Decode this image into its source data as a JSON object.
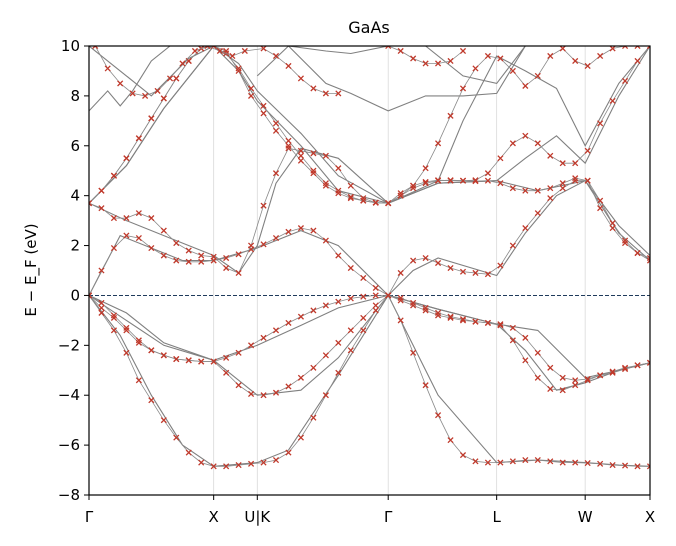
{
  "chart_data": {
    "type": "line",
    "title": "GaAs",
    "ylabel": "E − E_F  (eV)",
    "ylim": [
      -8,
      10
    ],
    "y_ticks": [
      -8,
      -6,
      -4,
      -2,
      0,
      2,
      4,
      6,
      8,
      10
    ],
    "xlim": [
      0,
      4.5
    ],
    "k_points": [
      {
        "label": "Γ",
        "x": 0
      },
      {
        "label": "X",
        "x": 1.0
      },
      {
        "label": "U|K",
        "x": 1.35
      },
      {
        "label": "Γ",
        "x": 2.4
      },
      {
        "label": "L",
        "x": 3.27
      },
      {
        "label": "W",
        "x": 3.98
      },
      {
        "label": "X",
        "x": 4.5
      }
    ],
    "fermi_level": 0,
    "grid": "vertical lines at high-symmetry points",
    "colors": {
      "reference_bands": "#808080",
      "markers": "#c0392b",
      "fermi_line": "#1f3b5c"
    },
    "series": [
      {
        "role": "reference",
        "x": [
          0,
          0.25,
          0.5,
          0.75,
          1.0,
          1.35,
          1.6,
          2.0,
          2.4,
          2.8,
          3.27,
          3.6,
          3.98,
          4.25,
          4.5
        ],
        "y": [
          0,
          -1.6,
          -4.0,
          -6.0,
          -6.85,
          -6.7,
          -6.2,
          -3.2,
          0,
          -4.0,
          -6.7,
          -6.6,
          -6.7,
          -6.8,
          -6.85
        ]
      },
      {
        "role": "reference",
        "x": [
          0,
          0.3,
          0.6,
          1.0,
          1.35,
          1.7,
          2.0,
          2.4,
          2.8,
          3.27,
          3.5,
          3.75,
          3.98,
          4.25,
          4.5
        ],
        "y": [
          0,
          -1.0,
          -2.0,
          -2.6,
          -4.0,
          -3.8,
          -2.5,
          0,
          -0.55,
          -1.15,
          -2.2,
          -3.8,
          -3.5,
          -3.0,
          -2.7
        ]
      },
      {
        "role": "reference",
        "x": [
          0,
          0.3,
          0.6,
          1.0,
          1.35,
          1.7,
          2.0,
          2.4,
          2.8,
          3.27,
          3.6,
          3.98,
          4.25,
          4.5
        ],
        "y": [
          0,
          -0.7,
          -1.9,
          -2.6,
          -2.0,
          -1.2,
          -0.5,
          0,
          -0.55,
          -1.15,
          -1.4,
          -3.3,
          -3.0,
          -2.7
        ]
      },
      {
        "role": "reference",
        "x": [
          0,
          0.25,
          0.5,
          0.75,
          1.0,
          1.35,
          1.7,
          2.0,
          2.4,
          2.6,
          2.8,
          3.27,
          3.5,
          3.75,
          3.98,
          4.25,
          4.5
        ],
        "y": [
          0,
          2.4,
          1.9,
          1.4,
          1.4,
          1.9,
          2.6,
          2.0,
          0,
          1.0,
          1.5,
          0.8,
          2.5,
          4.0,
          4.6,
          2.5,
          1.4
        ]
      },
      {
        "role": "reference",
        "x": [
          0,
          0.3,
          0.7,
          1.0,
          1.2,
          1.35,
          1.5,
          1.7,
          2.0,
          2.4,
          2.8,
          3.27,
          3.6,
          3.98,
          4.25,
          4.5
        ],
        "y": [
          3.7,
          3.0,
          2.2,
          1.6,
          0.9,
          2.0,
          4.5,
          5.9,
          5.5,
          3.7,
          4.5,
          4.6,
          4.2,
          4.6,
          2.8,
          1.6
        ]
      },
      {
        "role": "reference",
        "x": [
          0,
          0.3,
          0.6,
          1.0,
          1.2,
          1.35,
          1.7,
          2.0,
          2.4,
          2.8,
          3.27,
          3.5,
          3.75,
          3.98,
          4.25,
          4.5
        ],
        "y": [
          3.7,
          5.2,
          7.5,
          10,
          9.0,
          7.8,
          6.0,
          4.2,
          3.7,
          4.5,
          4.6,
          5.5,
          6.4,
          5.3,
          8.0,
          10
        ]
      },
      {
        "role": "reference",
        "x": [
          0,
          0.3,
          0.6,
          1.0,
          1.2,
          1.35,
          1.7,
          2.0,
          2.4,
          2.8,
          3.0,
          3.27,
          3.5,
          3.75,
          3.98,
          4.25,
          4.5
        ],
        "y": [
          3.7,
          5.2,
          7.5,
          10,
          9.3,
          8.2,
          6.5,
          4.8,
          3.7,
          4.6,
          7.0,
          9.6,
          9.0,
          8.3,
          6.0,
          8.5,
          10
        ]
      },
      {
        "role": "reference",
        "x": [
          0,
          0.15,
          0.25,
          0.35,
          0.5,
          0.65,
          0.8,
          1.0
        ],
        "y": [
          7.4,
          8.2,
          7.6,
          8.2,
          9.4,
          10,
          10,
          10
        ]
      },
      {
        "role": "reference",
        "x": [
          0,
          0.3,
          0.5,
          0.8,
          1.0
        ],
        "y": [
          10,
          8.8,
          8.0,
          9.5,
          10
        ]
      },
      {
        "role": "reference",
        "x": [
          1.35,
          1.6,
          1.9,
          2.1,
          2.4,
          2.7,
          3.0,
          3.27,
          3.5
        ],
        "y": [
          8.8,
          10,
          8.5,
          8.1,
          7.4,
          8.0,
          8.0,
          8.1,
          10
        ]
      },
      {
        "role": "reference",
        "x": [
          1.6,
          1.9,
          2.1,
          2.4,
          2.7,
          3.0,
          3.27,
          3.5
        ],
        "y": [
          10,
          9.8,
          9.7,
          10,
          10,
          8.8,
          8.5,
          10
        ]
      },
      {
        "role": "markers",
        "x": [
          0,
          0.1,
          0.2,
          0.3,
          0.4,
          0.5,
          0.6,
          0.7,
          0.8,
          0.9,
          1.0,
          1.1,
          1.2,
          1.3,
          1.4,
          1.5,
          1.6,
          1.7,
          1.8,
          1.9,
          2.0,
          2.1,
          2.2,
          2.3,
          2.4,
          2.5,
          2.6,
          2.7,
          2.8,
          2.9,
          3.0,
          3.1,
          3.2,
          3.3,
          3.4,
          3.5,
          3.6,
          3.7,
          3.8,
          3.9,
          4.0,
          4.1,
          4.2,
          4.3,
          4.4,
          4.5
        ],
        "y": [
          0,
          -0.7,
          -1.4,
          -2.3,
          -3.4,
          -4.2,
          -5.0,
          -5.7,
          -6.3,
          -6.7,
          -6.85,
          -6.85,
          -6.8,
          -6.75,
          -6.7,
          -6.6,
          -6.3,
          -5.7,
          -4.9,
          -4.0,
          -3.1,
          -2.2,
          -1.4,
          -0.6,
          0,
          -1.0,
          -2.3,
          -3.6,
          -4.8,
          -5.8,
          -6.4,
          -6.65,
          -6.7,
          -6.7,
          -6.65,
          -6.6,
          -6.6,
          -6.65,
          -6.7,
          -6.7,
          -6.72,
          -6.75,
          -6.8,
          -6.82,
          -6.85,
          -6.85
        ]
      },
      {
        "role": "markers",
        "x": [
          0,
          0.1,
          0.2,
          0.3,
          0.4,
          0.5,
          0.6,
          0.7,
          0.8,
          0.9,
          1.0,
          1.1,
          1.2,
          1.3,
          1.4,
          1.5,
          1.6,
          1.7,
          1.8,
          1.9,
          2.0,
          2.1,
          2.2,
          2.3,
          2.4,
          2.5,
          2.6,
          2.7,
          2.8,
          2.9,
          3.0,
          3.1,
          3.2,
          3.3,
          3.4,
          3.5,
          3.6,
          3.7,
          3.8,
          3.9,
          4.0,
          4.1,
          4.2,
          4.3,
          4.4,
          4.5
        ],
        "y": [
          0,
          -0.5,
          -0.9,
          -1.4,
          -1.9,
          -2.2,
          -2.4,
          -2.55,
          -2.6,
          -2.65,
          -2.65,
          -3.1,
          -3.6,
          -3.95,
          -4.0,
          -3.9,
          -3.65,
          -3.3,
          -2.9,
          -2.4,
          -1.9,
          -1.4,
          -0.9,
          -0.4,
          0,
          -0.2,
          -0.4,
          -0.6,
          -0.8,
          -0.9,
          -1.0,
          -1.05,
          -1.1,
          -1.2,
          -1.8,
          -2.6,
          -3.3,
          -3.75,
          -3.8,
          -3.6,
          -3.4,
          -3.2,
          -3.1,
          -2.95,
          -2.8,
          -2.7
        ]
      },
      {
        "role": "markers",
        "x": [
          0,
          0.1,
          0.2,
          0.3,
          0.4,
          0.5,
          0.6,
          0.7,
          0.8,
          0.9,
          1.0,
          1.1,
          1.2,
          1.3,
          1.4,
          1.5,
          1.6,
          1.7,
          1.8,
          1.9,
          2.0,
          2.1,
          2.2,
          2.3,
          2.4,
          2.5,
          2.6,
          2.7,
          2.8,
          2.9,
          3.0,
          3.1,
          3.2,
          3.3,
          3.4,
          3.5,
          3.6,
          3.7,
          3.8,
          3.9,
          4.0,
          4.1,
          4.2,
          4.3,
          4.4,
          4.5
        ],
        "y": [
          0,
          -0.3,
          -0.8,
          -1.3,
          -1.8,
          -2.2,
          -2.4,
          -2.55,
          -2.6,
          -2.65,
          -2.65,
          -2.5,
          -2.3,
          -2.0,
          -1.7,
          -1.4,
          -1.1,
          -0.85,
          -0.6,
          -0.4,
          -0.25,
          -0.12,
          -0.05,
          0,
          0,
          -0.1,
          -0.3,
          -0.5,
          -0.7,
          -0.85,
          -0.95,
          -1.05,
          -1.1,
          -1.15,
          -1.3,
          -1.7,
          -2.3,
          -2.9,
          -3.3,
          -3.4,
          -3.35,
          -3.2,
          -3.05,
          -2.9,
          -2.8,
          -2.7
        ]
      },
      {
        "role": "markers",
        "x": [
          0,
          0.1,
          0.2,
          0.3,
          0.4,
          0.5,
          0.6,
          0.7,
          0.8,
          0.9,
          1.0,
          1.1,
          1.2,
          1.3,
          1.4,
          1.5,
          1.6,
          1.7,
          1.8,
          1.9,
          2.0,
          2.1,
          2.2,
          2.3,
          2.4,
          2.5,
          2.6,
          2.7,
          2.8,
          2.9,
          3.0,
          3.1,
          3.2,
          3.3,
          3.4,
          3.5,
          3.6,
          3.7,
          3.8,
          3.9,
          4.0,
          4.1,
          4.2,
          4.3,
          4.4,
          4.5
        ],
        "y": [
          0,
          1.0,
          1.9,
          2.4,
          2.3,
          1.9,
          1.6,
          1.4,
          1.35,
          1.35,
          1.4,
          1.5,
          1.65,
          1.85,
          2.05,
          2.3,
          2.55,
          2.7,
          2.6,
          2.2,
          1.6,
          1.1,
          0.7,
          0.3,
          0,
          0.9,
          1.4,
          1.5,
          1.3,
          1.1,
          0.95,
          0.9,
          0.85,
          1.2,
          2.0,
          2.7,
          3.3,
          3.9,
          4.3,
          4.6,
          4.6,
          3.8,
          2.9,
          2.2,
          1.7,
          1.4
        ]
      },
      {
        "role": "markers",
        "x": [
          0,
          0.1,
          0.2,
          0.3,
          0.4,
          0.5,
          0.6,
          0.7,
          0.8,
          0.9,
          1.0,
          1.1,
          1.2,
          1.3,
          1.4,
          1.5,
          1.6,
          1.7,
          1.8,
          1.9,
          2.0,
          2.1,
          2.2,
          2.3,
          2.4,
          2.5,
          2.6,
          2.7,
          2.8,
          2.9,
          3.0,
          3.1,
          3.2,
          3.3,
          3.4,
          3.5,
          3.6,
          3.7,
          3.8,
          3.9,
          4.0,
          4.1,
          4.2,
          4.3,
          4.4,
          4.5
        ],
        "y": [
          3.7,
          3.5,
          3.1,
          3.1,
          3.3,
          3.1,
          2.6,
          2.1,
          1.8,
          1.6,
          1.55,
          1.1,
          0.9,
          2.0,
          3.6,
          4.9,
          5.9,
          5.8,
          5.7,
          5.6,
          5.1,
          4.4,
          3.9,
          3.72,
          3.7,
          4.1,
          4.4,
          4.55,
          4.62,
          4.6,
          4.6,
          4.58,
          4.6,
          4.5,
          4.3,
          4.2,
          4.2,
          4.3,
          4.5,
          4.7,
          4.6,
          3.5,
          2.7,
          2.1,
          1.7,
          1.5
        ]
      },
      {
        "role": "markers",
        "x": [
          0,
          0.1,
          0.2,
          0.3,
          0.4,
          0.5,
          0.6,
          0.7,
          0.8,
          0.9,
          1.0,
          1.1,
          1.2,
          1.3,
          1.4,
          1.5,
          1.6,
          1.7,
          1.8,
          1.9,
          2.0,
          2.1,
          2.2,
          2.3,
          2.4,
          2.5,
          2.6,
          2.7,
          2.8,
          2.9,
          3.0,
          3.1,
          3.2,
          3.3,
          3.4,
          3.5,
          3.6,
          3.7,
          3.8,
          3.9,
          4.0,
          4.1,
          4.2,
          4.3,
          4.4,
          4.5
        ],
        "y": [
          3.7,
          4.2,
          4.8,
          5.5,
          6.3,
          7.1,
          7.9,
          8.7,
          9.4,
          9.9,
          10,
          9.8,
          9.0,
          8.0,
          7.3,
          6.6,
          6.0,
          5.4,
          4.9,
          4.4,
          4.1,
          3.9,
          3.8,
          3.72,
          3.7,
          4.0,
          4.3,
          4.5,
          4.6,
          4.62,
          4.6,
          4.62,
          4.9,
          5.5,
          6.1,
          6.4,
          6.1,
          5.6,
          5.3,
          5.3,
          5.8,
          6.9,
          7.8,
          8.6,
          9.4,
          10
        ]
      },
      {
        "role": "markers",
        "x": [
          0,
          0.1,
          0.2,
          0.3,
          0.4,
          0.5,
          0.6,
          0.7,
          0.8,
          0.9,
          1.0,
          1.1,
          1.2,
          1.3,
          1.4,
          1.5,
          1.6,
          1.7,
          1.8,
          1.9,
          2.0,
          2.1,
          2.2,
          2.3,
          2.4,
          2.5,
          2.6,
          2.7,
          2.8,
          2.9,
          3.0,
          3.1,
          3.2,
          3.3,
          3.4,
          3.5,
          3.6,
          3.7,
          3.8,
          3.9,
          4.0,
          4.1,
          4.2,
          4.3,
          4.4,
          4.5
        ],
        "y": [
          3.7,
          4.2,
          4.8,
          5.5,
          6.3,
          7.1,
          7.9,
          8.7,
          9.4,
          9.9,
          10,
          9.7,
          9.1,
          8.3,
          7.6,
          6.9,
          6.2,
          5.6,
          5.0,
          4.5,
          4.2,
          3.95,
          3.8,
          3.72,
          3.7,
          4.0,
          4.4,
          5.1,
          6.1,
          7.2,
          8.3,
          9.1,
          9.6,
          9.5,
          9.0,
          8.4,
          8.8,
          9.6,
          9.9,
          9.4,
          9.2,
          9.6,
          9.9,
          10,
          10,
          10
        ]
      },
      {
        "role": "markers",
        "x": [
          0.05,
          0.15,
          0.25,
          0.35,
          0.45,
          0.55,
          0.65,
          0.75,
          0.85,
          0.95,
          1.05,
          1.15,
          1.25,
          1.4,
          1.5,
          1.6,
          1.7,
          1.8,
          1.9,
          2.0
        ],
        "y": [
          10,
          9.1,
          8.5,
          8.1,
          8.0,
          8.2,
          8.7,
          9.3,
          9.8,
          10,
          9.8,
          9.6,
          9.8,
          9.9,
          9.6,
          9.2,
          8.7,
          8.3,
          8.1,
          8.1
        ]
      },
      {
        "role": "markers",
        "x": [
          2.4,
          2.5,
          2.6,
          2.7,
          2.8,
          2.9,
          3.0
        ],
        "y": [
          10,
          9.8,
          9.5,
          9.3,
          9.3,
          9.4,
          9.8
        ]
      }
    ]
  }
}
